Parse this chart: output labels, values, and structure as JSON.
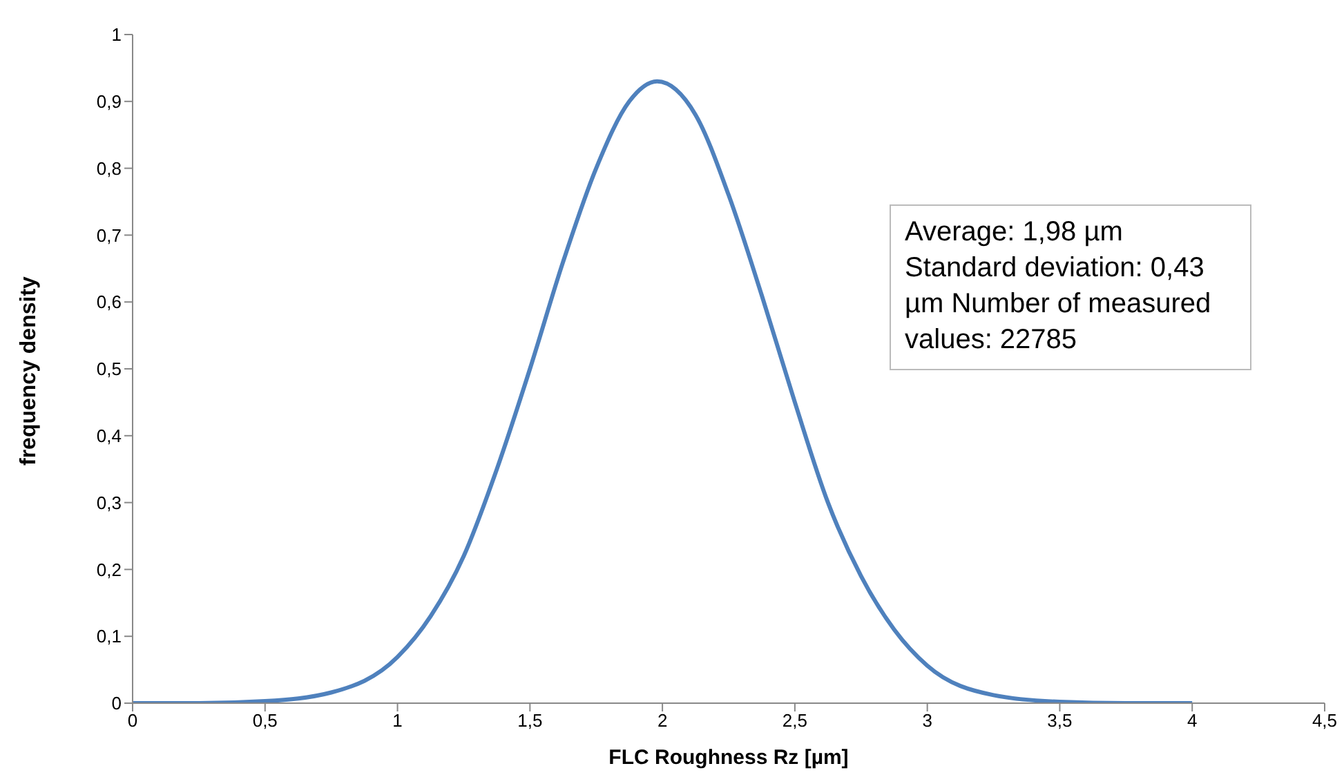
{
  "chart_data": {
    "type": "line",
    "xlabel": "FLC Roughness Rz [µm]",
    "ylabel": "frequency density",
    "annotations": [
      "Average:  1,98 µm Standard deviation: 0,43 µm Number of measured values:  22785"
    ],
    "x": [
      0,
      0.25,
      0.5,
      0.75,
      1,
      1.125,
      1.25,
      1.375,
      1.5,
      1.625,
      1.75,
      1.875,
      1.98,
      2.125,
      2.25,
      2.375,
      2.5,
      2.625,
      2.75,
      2.875,
      3,
      3.25,
      3.5,
      3.75,
      4
    ],
    "series": [
      {
        "color": "#4f81bd",
        "values": [
          0,
          0,
          0.003,
          0.016,
          0.069,
          0.13,
          0.22,
          0.35,
          0.5,
          0.66,
          0.8,
          0.9,
          0.93,
          0.88,
          0.76,
          0.61,
          0.45,
          0.3,
          0.19,
          0.11,
          0.056,
          0.012,
          0.002,
          0,
          0
        ]
      }
    ],
    "xlim": [
      0,
      4.5
    ],
    "xticks": [
      0,
      {
        "value": 0.5,
        "label": "0,5"
      },
      1,
      {
        "value": 1.5,
        "label": "1,5"
      },
      2,
      {
        "value": 2.5,
        "label": "2,5"
      },
      3,
      {
        "value": 3.5,
        "label": "3,5"
      },
      4,
      {
        "value": 4.5,
        "label": "4,5"
      }
    ],
    "ylim": [
      0,
      1
    ],
    "yticks": [
      0,
      {
        "value": 0.1,
        "label": "0,1"
      },
      {
        "value": 0.2,
        "label": "0,2"
      },
      {
        "value": 0.3,
        "label": "0,3"
      },
      {
        "value": 0.4,
        "label": "0,4"
      },
      {
        "value": 0.5,
        "label": "0,5"
      },
      {
        "value": 0.6,
        "label": "0,6"
      },
      {
        "value": 0.7,
        "label": "0,7"
      },
      {
        "value": 0.8,
        "label": "0,8"
      },
      {
        "value": 0.9,
        "label": "0,9"
      },
      1
    ],
    "grid": false,
    "legend": false
  }
}
